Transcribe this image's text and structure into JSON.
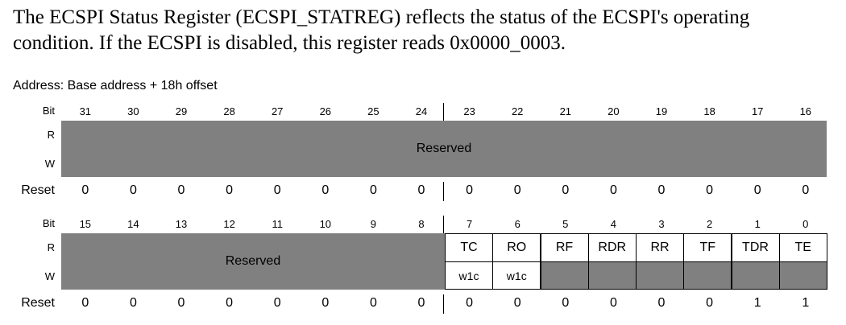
{
  "intro": "The ECSPI Status Register (ECSPI_STATREG) reflects the status of the ECSPI's operating condition. If the ECSPI is disabled, this register reads 0x0000_0003.",
  "address": "Address: Base address + 18h offset",
  "labels": {
    "bit": "Bit",
    "r": "R",
    "w": "W",
    "reset": "Reset"
  },
  "upper": {
    "bits": [
      "31",
      "30",
      "29",
      "28",
      "27",
      "26",
      "25",
      "24",
      "23",
      "22",
      "21",
      "20",
      "19",
      "18",
      "17",
      "16"
    ],
    "field": "Reserved",
    "reset": [
      "0",
      "0",
      "0",
      "0",
      "0",
      "0",
      "0",
      "0",
      "0",
      "0",
      "0",
      "0",
      "0",
      "0",
      "0",
      "0"
    ]
  },
  "lower": {
    "bits": [
      "15",
      "14",
      "13",
      "12",
      "11",
      "10",
      "9",
      "8",
      "7",
      "6",
      "5",
      "4",
      "3",
      "2",
      "1",
      "0"
    ],
    "reserved": "Reserved",
    "fields": [
      "TC",
      "RO",
      "RF",
      "RDR",
      "RR",
      "TF",
      "TDR",
      "TE"
    ],
    "write": [
      "w1c",
      "w1c"
    ],
    "reset": [
      "0",
      "0",
      "0",
      "0",
      "0",
      "0",
      "0",
      "0",
      "0",
      "0",
      "0",
      "0",
      "0",
      "0",
      "1",
      "1"
    ]
  }
}
